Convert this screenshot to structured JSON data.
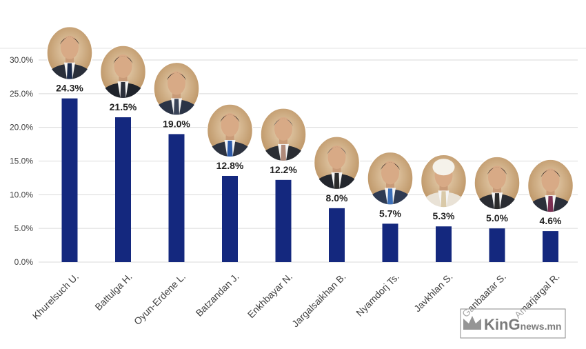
{
  "chart_data": {
    "type": "bar",
    "title": "",
    "xlabel": "",
    "ylabel": "",
    "categories": [
      "Khurelsuch U.",
      "Battulga H.",
      "Oyun-Erdene L.",
      "Batzandan J.",
      "Enkhbayar N.",
      "Jargalsaikhan B.",
      "Nyamdorj Ts.",
      "Javkhlan S.",
      "Ganbaatar S.",
      "Amarjargal R."
    ],
    "values": [
      24.3,
      21.5,
      19.0,
      12.8,
      12.2,
      8.0,
      5.7,
      5.3,
      5.0,
      4.6
    ],
    "value_labels": [
      "24.3%",
      "21.5%",
      "19.0%",
      "12.8%",
      "12.2%",
      "8.0%",
      "5.7%",
      "5.3%",
      "5.0%",
      "4.6%"
    ],
    "ylim": [
      0,
      30
    ],
    "y_ticks": [
      0,
      5,
      10,
      15,
      20,
      25,
      30
    ],
    "y_tick_labels": [
      "0.0%",
      "5.0%",
      "10.0%",
      "15.0%",
      "20.0%",
      "25.0%",
      "30.0%"
    ],
    "grid": true,
    "legend": "none",
    "bar_color": "#14287e",
    "grid_color": "#d9d9d9",
    "portraits": "photo-portrait above each bar"
  },
  "watermark": {
    "brand_left": "Kin",
    "brand_mid": "G",
    "brand_right": "news.mn",
    "icon": "crown-icon"
  }
}
